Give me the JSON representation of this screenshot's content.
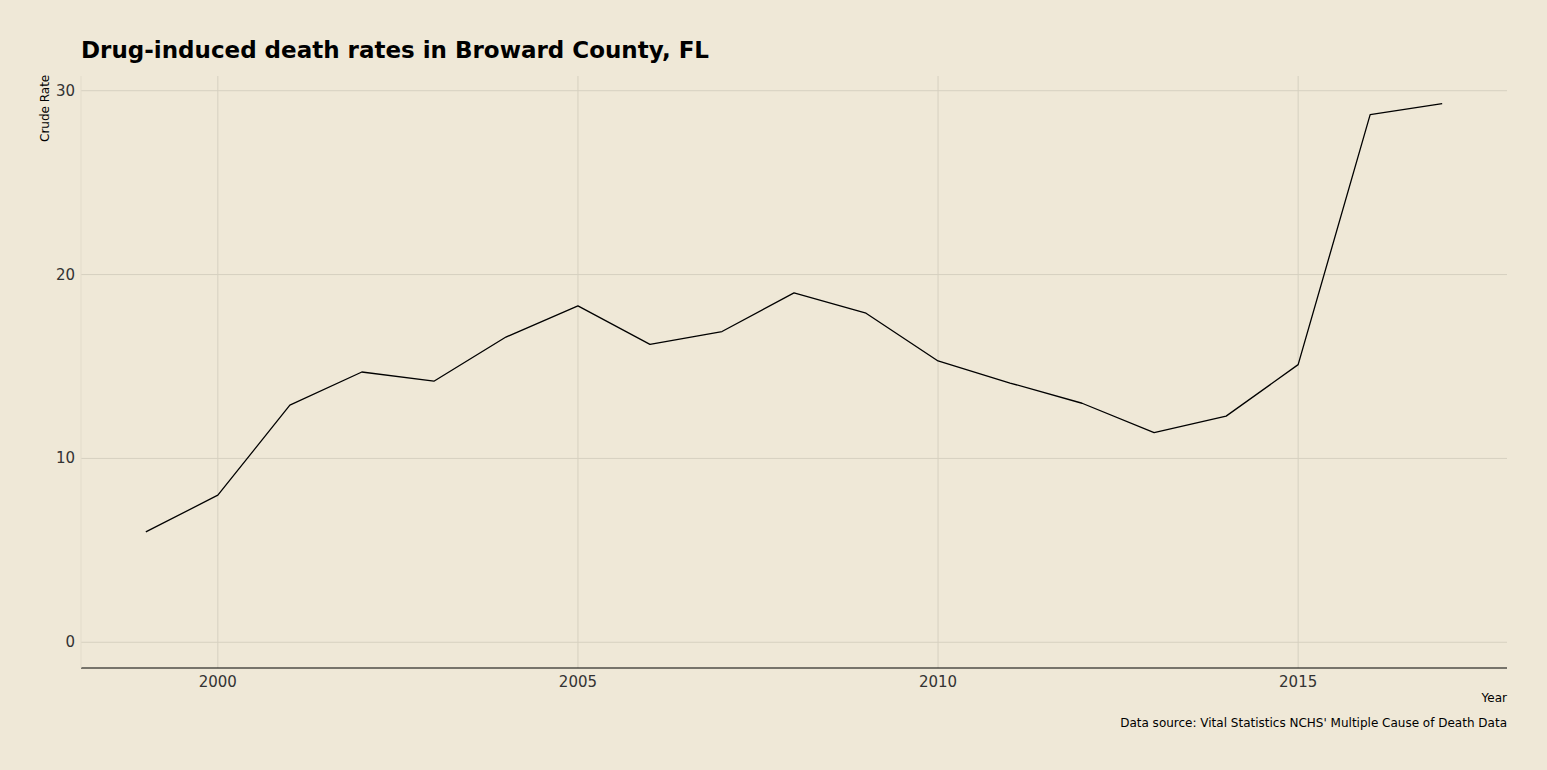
{
  "chart_data": {
    "type": "line",
    "title": "Drug-induced death rates in Broward County, FL",
    "x_label": "Year",
    "y_label": "Crude Rate",
    "source": "Data source: Vital Statistics NCHS' Multiple Cause of Death Data",
    "x": [
      1999,
      2000,
      2001,
      2002,
      2003,
      2004,
      2005,
      2006,
      2007,
      2008,
      2009,
      2010,
      2011,
      2012,
      2013,
      2014,
      2015,
      2016,
      2017
    ],
    "series": [
      {
        "name": "Crude Rate",
        "color": "#000000",
        "values": [
          6.0,
          8.0,
          12.9,
          14.7,
          14.2,
          16.6,
          18.3,
          16.2,
          16.9,
          19.0,
          17.9,
          15.3,
          14.1,
          13.0,
          11.4,
          12.3,
          15.1,
          28.7,
          29.3
        ]
      }
    ],
    "xlim": [
      1998.1,
      2017.9
    ],
    "xticks": [
      2000,
      2005,
      2010,
      2015
    ],
    "ylim": [
      -1.4,
      30.8
    ],
    "yticks": [
      0,
      10,
      20,
      30
    ],
    "grid": true
  }
}
